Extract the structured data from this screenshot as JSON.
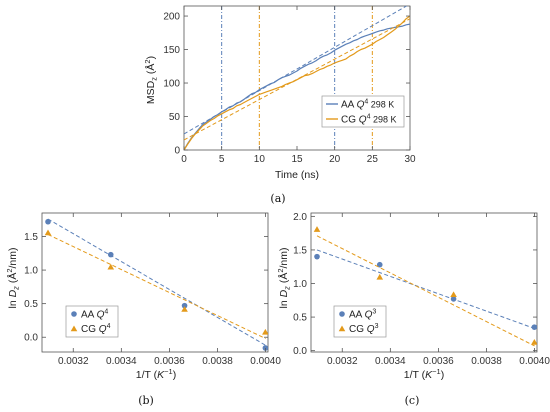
{
  "colors": {
    "aa": "#5b80b8",
    "cg": "#e39a1b"
  },
  "chart_data": [
    {
      "id": "a",
      "type": "line",
      "panel_label": "(a)",
      "xlabel": "Time (ns)",
      "ylabel_main": "MSD",
      "ylabel_sub": "z",
      "ylabel_unit_open": " (Å",
      "ylabel_unit_sup": "2",
      "ylabel_unit_close": ")",
      "xlim": [
        0,
        30
      ],
      "ylim": [
        0,
        215
      ],
      "xticks": [
        0,
        5,
        10,
        15,
        20,
        25,
        30
      ],
      "yticks": [
        0,
        50,
        100,
        150,
        200
      ],
      "series": [
        {
          "name_pre": "AA ",
          "name_q": "Q",
          "name_sup": "4",
          "name_post": " 298 K",
          "color_key": "aa",
          "x": [
            0,
            0.5,
            1,
            1.5,
            2,
            2.5,
            3,
            3.5,
            4,
            4.5,
            5,
            5.5,
            6,
            6.5,
            7,
            7.5,
            8,
            8.5,
            9,
            9.5,
            10,
            10.5,
            11,
            11.5,
            12,
            12.5,
            13,
            13.5,
            14,
            14.5,
            15,
            15.5,
            16,
            16.5,
            17,
            17.5,
            18,
            18.5,
            19,
            19.5,
            20,
            20.5,
            21,
            21.5,
            22,
            22.5,
            23,
            23.5,
            24,
            24.5,
            25,
            25.5,
            26,
            26.5,
            27,
            27.5,
            28,
            28.5,
            29,
            29.5,
            30
          ],
          "y": [
            0,
            10,
            18,
            25,
            32,
            38,
            42,
            46,
            50,
            53,
            57,
            60,
            64,
            66,
            70,
            72,
            76,
            80,
            84,
            86,
            90,
            93,
            96,
            99,
            101,
            105,
            108,
            110,
            112,
            115,
            118,
            122,
            125,
            128,
            130,
            133,
            137,
            140,
            142,
            145,
            149,
            152,
            155,
            158,
            160,
            163,
            165,
            168,
            170,
            172,
            174,
            176,
            178,
            179,
            181,
            182,
            183,
            184,
            185,
            187,
            188
          ]
        },
        {
          "name_pre": "CG ",
          "name_q": "Q",
          "name_sup": "4",
          "name_post": " 298 K",
          "color_key": "cg",
          "x": [
            0,
            0.5,
            1,
            1.5,
            2,
            2.5,
            3,
            3.5,
            4,
            4.5,
            5,
            5.5,
            6,
            6.5,
            7,
            7.5,
            8,
            8.5,
            9,
            9.5,
            10,
            10.5,
            11,
            11.5,
            12,
            12.5,
            13,
            13.5,
            14,
            14.5,
            15,
            15.5,
            16,
            16.5,
            17,
            17.5,
            18,
            18.5,
            19,
            19.5,
            20,
            20.5,
            21,
            21.5,
            22,
            22.5,
            23,
            23.5,
            24,
            24.5,
            25,
            25.5,
            26,
            26.5,
            27,
            27.5,
            28,
            28.5,
            29,
            29.5,
            30
          ],
          "y": [
            0,
            9,
            17,
            24,
            30,
            36,
            40,
            44,
            47,
            51,
            54,
            57,
            60,
            62,
            66,
            68,
            71,
            74,
            77,
            80,
            83,
            85,
            87,
            89,
            91,
            93,
            95,
            98,
            100,
            102,
            105,
            108,
            111,
            112,
            114,
            117,
            120,
            122,
            125,
            127,
            130,
            132,
            134,
            136,
            140,
            143,
            147,
            150,
            152,
            155,
            158,
            162,
            165,
            168,
            172,
            176,
            180,
            185,
            190,
            196,
            200
          ]
        }
      ],
      "fits": [
        {
          "color_key": "aa",
          "x": [
            0,
            30
          ],
          "y": [
            24,
            218
          ]
        },
        {
          "color_key": "cg",
          "x": [
            0,
            30
          ],
          "y": [
            15,
            196
          ]
        }
      ],
      "vlines": [
        {
          "x": 5,
          "color_key": "aa"
        },
        {
          "x": 10,
          "color_key": "cg"
        },
        {
          "x": 20,
          "color_key": "aa"
        },
        {
          "x": 25,
          "color_key": "cg"
        }
      ],
      "legend_position": "bottom-right",
      "grid": false
    },
    {
      "id": "b",
      "type": "scatter",
      "panel_label": "(b)",
      "xlabel_pre": "1/T (",
      "xlabel_k": "K",
      "xlabel_sup": "−1",
      "xlabel_post": ")",
      "ylabel_pre": "ln ",
      "ylabel_d": "D",
      "ylabel_sub": "z",
      "ylabel_unit_open": " (Å",
      "ylabel_unit_sup": "2",
      "ylabel_unit_close": "/nm)",
      "xlim": [
        0.00307,
        0.00401
      ],
      "ylim": [
        -0.22,
        1.85
      ],
      "xticks": [
        0.0032,
        0.0034,
        0.0036,
        0.0038,
        0.004
      ],
      "xtick_labels": [
        "0.0032",
        "0.0034",
        "0.0036",
        "0.0038",
        "0.0040"
      ],
      "yticks": [
        0.0,
        0.5,
        1.0,
        1.5
      ],
      "ytick_labels": [
        "0.0",
        "0.5",
        "1.0",
        "1.5"
      ],
      "series": [
        {
          "name_pre": "AA ",
          "name_q": "Q",
          "name_sup": "4",
          "marker": "circle",
          "color_key": "aa",
          "x": [
            0.003095,
            0.003356,
            0.003663,
            0.003999
          ],
          "y": [
            1.72,
            1.23,
            0.47,
            -0.16
          ]
        },
        {
          "name_pre": "CG ",
          "name_q": "Q",
          "name_sup": "4",
          "marker": "triangle",
          "color_key": "cg",
          "x": [
            0.003095,
            0.003356,
            0.003663,
            0.003999
          ],
          "y": [
            1.55,
            1.04,
            0.41,
            0.07
          ]
        }
      ],
      "fits": [
        {
          "color_key": "aa",
          "x": [
            0.003095,
            0.004
          ],
          "y": [
            1.76,
            -0.12
          ]
        },
        {
          "color_key": "cg",
          "x": [
            0.003095,
            0.004
          ],
          "y": [
            1.53,
            -0.02
          ]
        }
      ],
      "legend_position": "bottom-left",
      "grid": false
    },
    {
      "id": "c",
      "type": "scatter",
      "panel_label": "(c)",
      "xlabel_pre": "1/T (",
      "xlabel_k": "K",
      "xlabel_sup": "−1",
      "xlabel_post": ")",
      "ylabel_pre": "ln ",
      "ylabel_d": "D",
      "ylabel_sub": "z",
      "ylabel_unit_open": " (Å",
      "ylabel_unit_sup": "2",
      "ylabel_unit_close": "/nm)",
      "xlim": [
        0.00307,
        0.00401
      ],
      "ylim": [
        -0.02,
        2.05
      ],
      "xticks": [
        0.0032,
        0.0034,
        0.0036,
        0.0038,
        0.004
      ],
      "xtick_labels": [
        "0.0032",
        "0.0034",
        "0.0036",
        "0.0038",
        "0.0040"
      ],
      "yticks": [
        0.0,
        0.5,
        1.0,
        1.5,
        2.0
      ],
      "ytick_labels": [
        "0.0",
        "0.5",
        "1.0",
        "1.5",
        "2.0"
      ],
      "series": [
        {
          "name_pre": "AA ",
          "name_q": "Q",
          "name_sup": "3",
          "marker": "circle",
          "color_key": "aa",
          "x": [
            0.003095,
            0.003356,
            0.003663,
            0.003999
          ],
          "y": [
            1.4,
            1.28,
            0.77,
            0.35
          ]
        },
        {
          "name_pre": "CG ",
          "name_q": "Q",
          "name_sup": "3",
          "marker": "triangle",
          "color_key": "cg",
          "x": [
            0.003095,
            0.003356,
            0.003663,
            0.003999
          ],
          "y": [
            1.8,
            1.09,
            0.83,
            0.12
          ]
        }
      ],
      "fits": [
        {
          "color_key": "aa",
          "x": [
            0.003095,
            0.004
          ],
          "y": [
            1.5,
            0.33
          ]
        },
        {
          "color_key": "cg",
          "x": [
            0.003095,
            0.004
          ],
          "y": [
            1.71,
            0.07
          ]
        }
      ],
      "legend_position": "bottom-left",
      "grid": false
    }
  ]
}
